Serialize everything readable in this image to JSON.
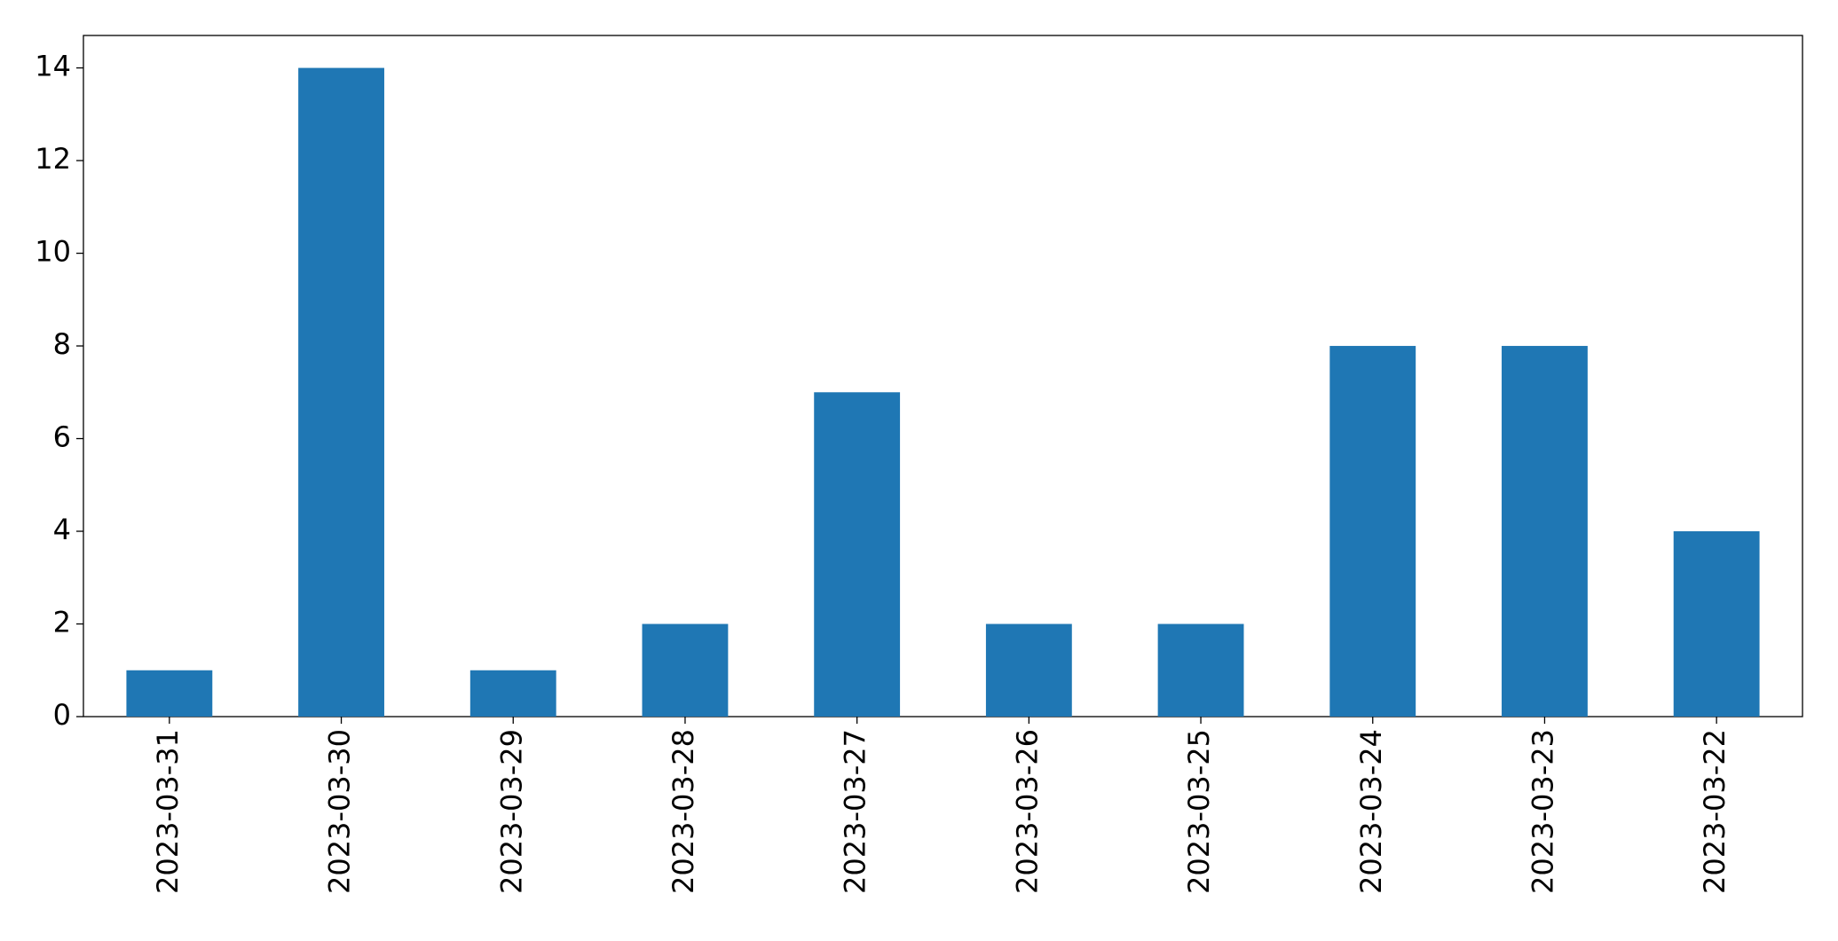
{
  "chart_data": {
    "type": "bar",
    "categories": [
      "2023-03-31",
      "2023-03-30",
      "2023-03-29",
      "2023-03-28",
      "2023-03-27",
      "2023-03-26",
      "2023-03-25",
      "2023-03-24",
      "2023-03-23",
      "2023-03-22"
    ],
    "values": [
      1,
      14,
      1,
      2,
      7,
      2,
      2,
      8,
      8,
      4
    ],
    "color": "#1f77b4",
    "ylim": [
      0,
      14.7
    ],
    "yticks": [
      0,
      2,
      4,
      6,
      8,
      10,
      12,
      14
    ],
    "grid": false
  }
}
